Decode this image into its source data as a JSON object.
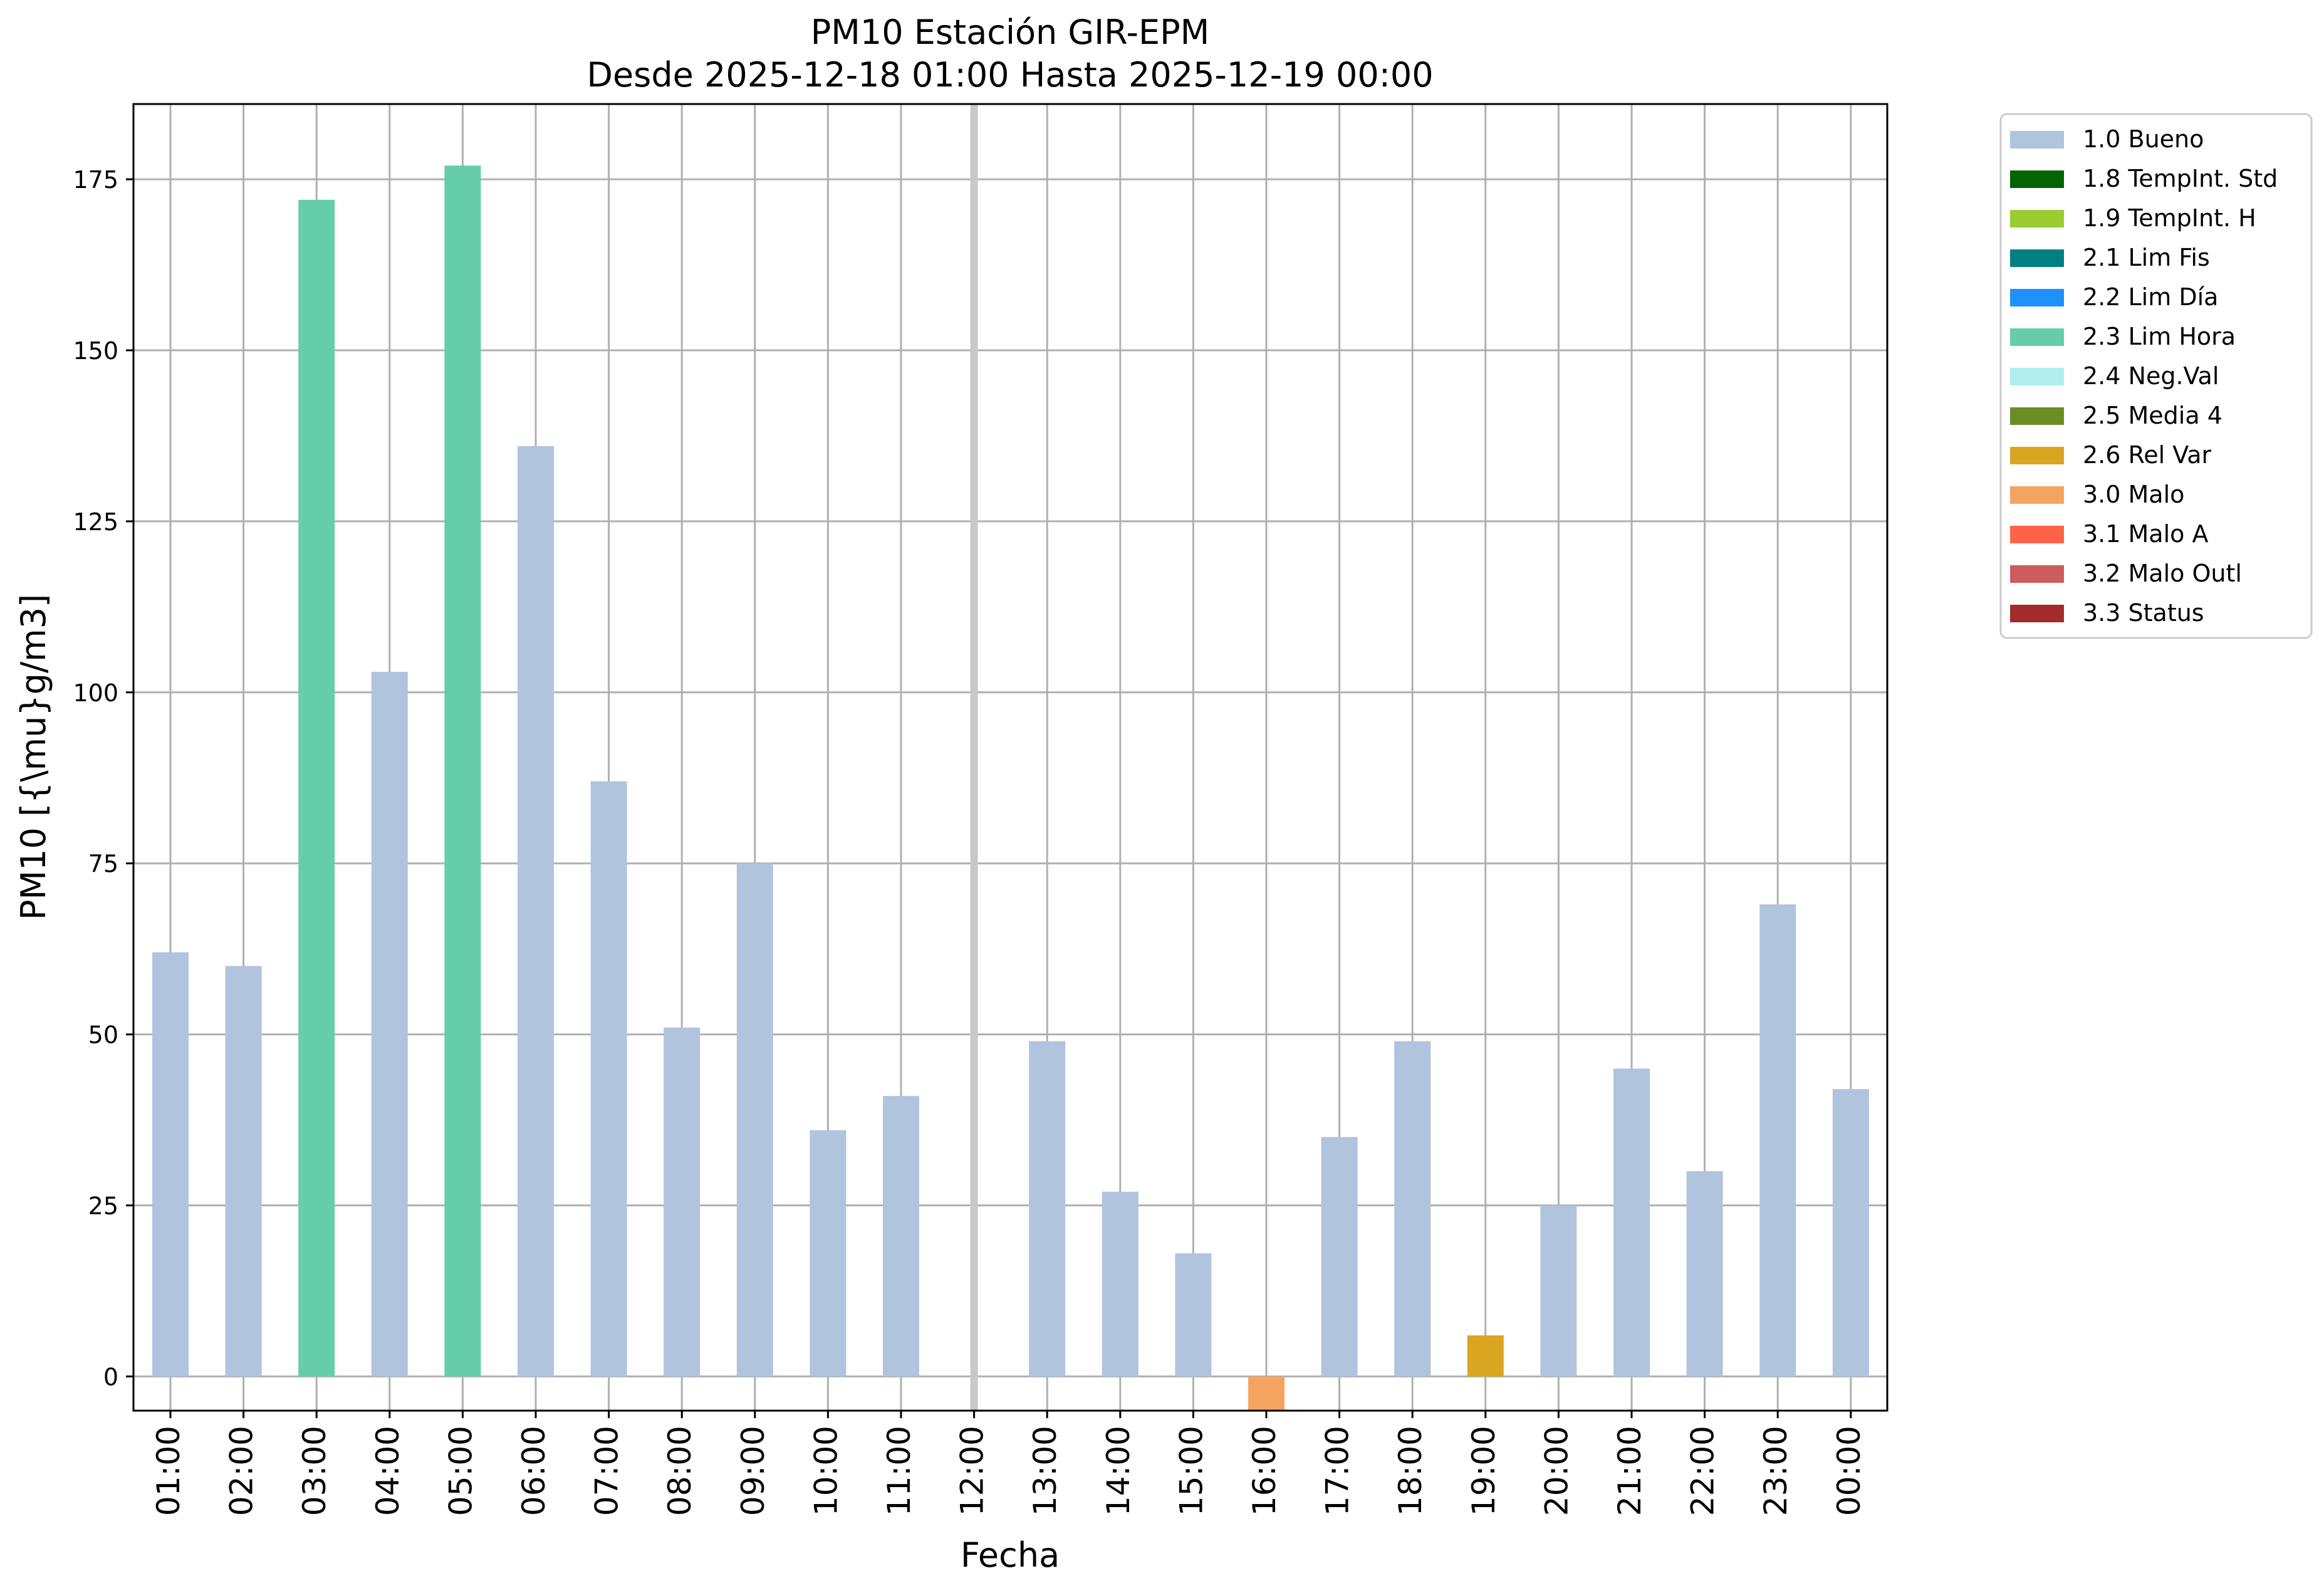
{
  "chart_data": {
    "type": "bar",
    "title": "PM10 Estación GIR-EPM",
    "subtitle": "Desde 2025-12-18 01:00 Hasta 2025-12-19 00:00",
    "xlabel": "Fecha",
    "ylabel": "PM10 [{\\mu}g/m3]",
    "ylim": [
      -5,
      186
    ],
    "yticks": [
      0,
      25,
      50,
      75,
      100,
      125,
      150,
      175
    ],
    "grid": true,
    "legend_position": "outside-right",
    "categories": [
      "01:00",
      "02:00",
      "03:00",
      "04:00",
      "05:00",
      "06:00",
      "07:00",
      "08:00",
      "09:00",
      "10:00",
      "11:00",
      "12:00",
      "13:00",
      "14:00",
      "15:00",
      "16:00",
      "17:00",
      "18:00",
      "19:00",
      "20:00",
      "21:00",
      "22:00",
      "23:00",
      "00:00"
    ],
    "values": [
      62,
      60,
      172,
      103,
      177,
      136,
      87,
      51,
      75,
      36,
      41,
      null,
      49,
      27,
      18,
      -5,
      35,
      49,
      6,
      25,
      45,
      30,
      69,
      42
    ],
    "flags": [
      "1.0 Bueno",
      "1.0 Bueno",
      "2.3 Lim Hora",
      "1.0 Bueno",
      "2.3 Lim Hora",
      "1.0 Bueno",
      "1.0 Bueno",
      "1.0 Bueno",
      "1.0 Bueno",
      "1.0 Bueno",
      "1.0 Bueno",
      null,
      "1.0 Bueno",
      "1.0 Bueno",
      "1.0 Bueno",
      "3.0 Malo",
      "1.0 Bueno",
      "1.0 Bueno",
      "2.6 Rel Var",
      "1.0 Bueno",
      "1.0 Bueno",
      "1.0 Bueno",
      "1.0 Bueno",
      "1.0 Bueno"
    ],
    "missing_marker_category": "12:00",
    "legend": [
      {
        "label": "1.0 Bueno",
        "color": "#b0c4de"
      },
      {
        "label": "1.8 TempInt. Std",
        "color": "#006400"
      },
      {
        "label": "1.9 TempInt. H",
        "color": "#9acd32"
      },
      {
        "label": "2.1 Lim Fis",
        "color": "#008080"
      },
      {
        "label": "2.2 Lim Día",
        "color": "#1e90ff"
      },
      {
        "label": "2.3 Lim Hora",
        "color": "#66cdaa"
      },
      {
        "label": "2.4 Neg.Val",
        "color": "#afeeee"
      },
      {
        "label": "2.5 Media 4",
        "color": "#6b8e23"
      },
      {
        "label": "2.6 Rel Var",
        "color": "#daa520"
      },
      {
        "label": "3.0 Malo",
        "color": "#f4a460"
      },
      {
        "label": "3.1 Malo A",
        "color": "#ff6347"
      },
      {
        "label": "3.2 Malo Outl",
        "color": "#cd5c5c"
      },
      {
        "label": "3.3 Status",
        "color": "#a52a2a"
      }
    ]
  }
}
